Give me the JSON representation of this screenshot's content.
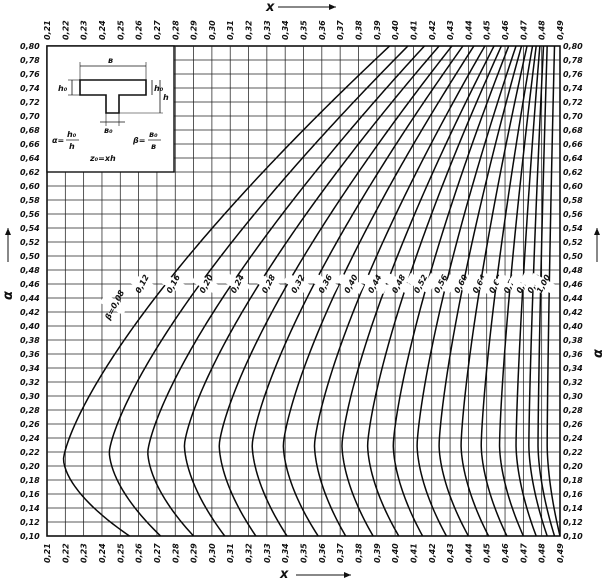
{
  "chart_data": {
    "type": "line",
    "title": "",
    "x_axis": {
      "label": "x",
      "min": 0.21,
      "max": 0.49,
      "step": 0.01,
      "top_ticks": [
        "0,21",
        "0,22",
        "0,23",
        "0,24",
        "0,25",
        "0,26",
        "0,27",
        "0,28",
        "0,29",
        "0,30",
        "0,31",
        "0,32",
        "0,33",
        "0,34",
        "0,35",
        "0,36",
        "0,37",
        "0,38",
        "0,39",
        "0,40",
        "0,41",
        "0,42",
        "0,43",
        "0,44",
        "0,45",
        "0,46",
        "0,47",
        "0,48",
        "0,49"
      ],
      "bottom_ticks": [
        "0,21",
        "0,22",
        "0,23",
        "0,24",
        "0,25",
        "0,26",
        "0,27",
        "0,28",
        "0,29",
        "0,30",
        "0,31",
        "0,32",
        "0,33",
        "0,34",
        "0,35",
        "0,36",
        "0,37",
        "0,38",
        "0,39",
        "0,40",
        "0,41",
        "0,42",
        "0,43",
        "0,44",
        "0,45",
        "0,46",
        "0,47",
        "0,48",
        "0,49"
      ]
    },
    "y_axis": {
      "label": "α",
      "min": 0.1,
      "max": 0.8,
      "step": 0.02,
      "ticks": [
        "0,10",
        "0,12",
        "0,14",
        "0,16",
        "0,18",
        "0,20",
        "0,22",
        "0,24",
        "0,26",
        "0,28",
        "0,30",
        "0,32",
        "0,34",
        "0,36",
        "0,38",
        "0,40",
        "0,42",
        "0,44",
        "0,46",
        "0,48",
        "0,50",
        "0,52",
        "0,54",
        "0,56",
        "0,58",
        "0,60",
        "0,62",
        "0,64",
        "0,66",
        "0,68",
        "0,70",
        "0,72",
        "0,74",
        "0,76",
        "0,78",
        "0,80"
      ]
    },
    "grid": true,
    "series": [
      {
        "name": "β=0,08",
        "label": "β=0,08",
        "x_top": 0.397,
        "x_min": 0.219,
        "x_bottom": 0.255,
        "alpha_min": 0.21,
        "label_at": [
          0.247,
          0.43
        ]
      },
      {
        "name": "0,12",
        "label": "0,12",
        "x_top": 0.407,
        "x_min": 0.244,
        "x_bottom": 0.272,
        "alpha_min": 0.22,
        "label_at": [
          0.262,
          0.46
        ]
      },
      {
        "name": "0,16",
        "label": "0,16",
        "x_top": 0.416,
        "x_min": 0.265,
        "x_bottom": 0.29,
        "alpha_min": 0.22,
        "label_at": [
          0.279,
          0.46
        ]
      },
      {
        "name": "0,20",
        "label": "0,20",
        "x_top": 0.424,
        "x_min": 0.285,
        "x_bottom": 0.307,
        "alpha_min": 0.23,
        "label_at": [
          0.297,
          0.46
        ]
      },
      {
        "name": "0,24",
        "label": "0,24",
        "x_top": 0.431,
        "x_min": 0.304,
        "x_bottom": 0.324,
        "alpha_min": 0.23,
        "label_at": [
          0.314,
          0.46
        ]
      },
      {
        "name": "0,28",
        "label": "0,28",
        "x_top": 0.437,
        "x_min": 0.322,
        "x_bottom": 0.341,
        "alpha_min": 0.23,
        "label_at": [
          0.331,
          0.46
        ]
      },
      {
        "name": "0,32",
        "label": "0,32",
        "x_top": 0.443,
        "x_min": 0.339,
        "x_bottom": 0.358,
        "alpha_min": 0.23,
        "label_at": [
          0.347,
          0.46
        ]
      },
      {
        "name": "0,36",
        "label": "0,36",
        "x_top": 0.449,
        "x_min": 0.356,
        "x_bottom": 0.373,
        "alpha_min": 0.23,
        "label_at": [
          0.362,
          0.46
        ]
      },
      {
        "name": "0,40",
        "label": "0,40",
        "x_top": 0.454,
        "x_min": 0.371,
        "x_bottom": 0.388,
        "alpha_min": 0.23,
        "label_at": [
          0.376,
          0.46
        ]
      },
      {
        "name": "0,44",
        "label": "0,44",
        "x_top": 0.458,
        "x_min": 0.385,
        "x_bottom": 0.402,
        "alpha_min": 0.23,
        "label_at": [
          0.389,
          0.46
        ]
      },
      {
        "name": "0,48",
        "label": "0,48",
        "x_top": 0.462,
        "x_min": 0.399,
        "x_bottom": 0.415,
        "alpha_min": 0.23,
        "label_at": [
          0.402,
          0.46
        ]
      },
      {
        "name": "0,52",
        "label": "0,52",
        "x_top": 0.466,
        "x_min": 0.412,
        "x_bottom": 0.428,
        "alpha_min": 0.23,
        "label_at": [
          0.414,
          0.46
        ]
      },
      {
        "name": "0,56",
        "label": "0,56",
        "x_top": 0.469,
        "x_min": 0.424,
        "x_bottom": 0.44,
        "alpha_min": 0.23,
        "label_at": [
          0.425,
          0.46
        ]
      },
      {
        "name": "0,60",
        "label": "0,60",
        "x_top": 0.472,
        "x_min": 0.436,
        "x_bottom": 0.451,
        "alpha_min": 0.23,
        "label_at": [
          0.436,
          0.46
        ]
      },
      {
        "name": "0,64",
        "label": "0,64",
        "x_top": 0.475,
        "x_min": 0.447,
        "x_bottom": 0.461,
        "alpha_min": 0.23,
        "label_at": [
          0.446,
          0.46
        ]
      },
      {
        "name": "0,68",
        "label": "0,68",
        "x_top": 0.477,
        "x_min": 0.457,
        "x_bottom": 0.47,
        "alpha_min": 0.23,
        "label_at": [
          0.455,
          0.46
        ]
      },
      {
        "name": "0,72",
        "label": "0,72",
        "x_top": 0.479,
        "x_min": 0.466,
        "x_bottom": 0.477,
        "alpha_min": 0.23,
        "label_at": [
          0.463,
          0.46
        ]
      },
      {
        "name": "0,76",
        "label": "0,76",
        "x_top": 0.481,
        "x_min": 0.473,
        "x_bottom": 0.483,
        "alpha_min": 0.23,
        "label_at": [
          0.47,
          0.46
        ]
      },
      {
        "name": "0,80",
        "label": "0,80",
        "x_top": 0.483,
        "x_min": 0.478,
        "x_bottom": 0.487,
        "alpha_min": 0.23,
        "label_at": [
          0.476,
          0.46
        ]
      },
      {
        "name": "1,00",
        "label": "1,00",
        "x_top": 0.487,
        "x_min": 0.483,
        "x_bottom": 0.49,
        "alpha_min": 0.23,
        "label_at": [
          0.481,
          0.46
        ]
      }
    ],
    "inset": {
      "dim_b": "в",
      "dim_b0": "в₀",
      "dim_h0": "h₀",
      "dim_h": "h",
      "formula_alpha": "α=",
      "formula_alpha_num": "h₀",
      "formula_alpha_den": "h",
      "formula_beta": "β=",
      "formula_beta_num": "в₀",
      "formula_beta_den": "в",
      "formula_z": "z₀=xh"
    }
  }
}
